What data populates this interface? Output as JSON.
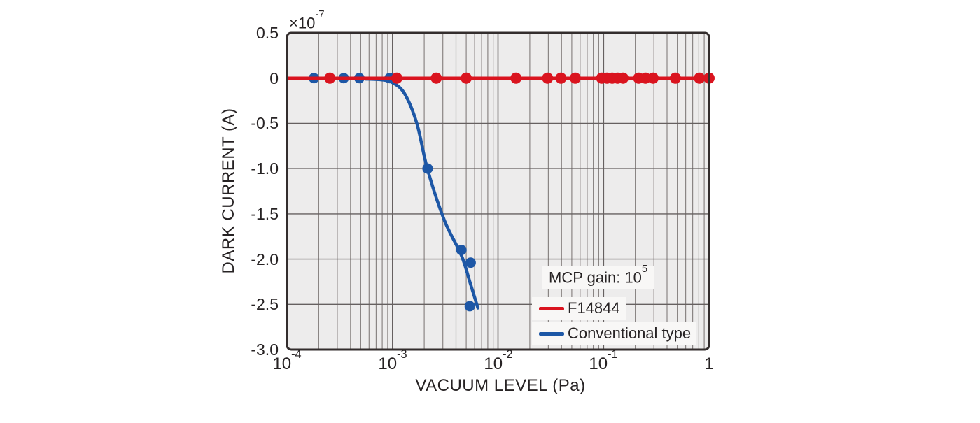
{
  "colors": {
    "page_bg": "#ffffff",
    "plot_bg": "#edecec",
    "grid_minor": "#8a8584",
    "grid_major": "#666060",
    "frame": "#332d2d",
    "red": "#da141f",
    "blue": "#1d57a6",
    "text": "#272324",
    "legend_bg": "#f8f7f6"
  },
  "chart_data": {
    "type": "line",
    "title": "",
    "xlabel": "VACUUM LEVEL (Pa)",
    "ylabel": "DARK CURRENT (A)",
    "y_axis_multiplier_base": "×10",
    "y_axis_multiplier_exp": "-7",
    "x_scale": "log",
    "xlim": [
      0.0001,
      1
    ],
    "ylim": [
      -3.0,
      0.5
    ],
    "ytick_step": 0.5,
    "yticks": [
      "0.5",
      "0",
      "-0.5",
      "-1.0",
      "-1.5",
      "-2.0",
      "-2.5",
      "-3.0"
    ],
    "xticks": [
      {
        "base": "10",
        "exp": "-4"
      },
      {
        "base": "10",
        "exp": "-3"
      },
      {
        "base": "10",
        "exp": "-2"
      },
      {
        "base": "10",
        "exp": "-1"
      },
      {
        "base": "1",
        "exp": ""
      }
    ],
    "grid": {
      "vertical": "log decades with minor lines 2-9",
      "horizontal": "every 0.5"
    },
    "legend": {
      "position": "inside-bottom-right",
      "note_base": "MCP gain: 10",
      "note_exp": "5",
      "entries": [
        "F14844",
        "Conventional type"
      ]
    },
    "series": [
      {
        "name": "F14844",
        "color": "#da141f",
        "marker": "circle",
        "y": 0,
        "x": [
          0.000255,
          0.0011,
          0.0026,
          0.005,
          0.0148,
          0.0295,
          0.0395,
          0.054,
          0.096,
          0.108,
          0.121,
          0.136,
          0.153,
          0.215,
          0.25,
          0.295,
          0.48,
          0.81,
          1.0
        ]
      },
      {
        "name": "Conventional type",
        "color": "#1d57a6",
        "marker": "circle",
        "points": [
          [
            0.00018,
            0
          ],
          [
            0.000345,
            0
          ],
          [
            0.000485,
            0
          ],
          [
            0.00094,
            0
          ],
          [
            0.00215,
            -1.0
          ],
          [
            0.0045,
            -1.9
          ],
          [
            0.0055,
            -2.04
          ],
          [
            0.0054,
            -2.52
          ]
        ],
        "curve": [
          [
            0.00055,
            -0.01
          ],
          [
            0.0008,
            -0.02
          ],
          [
            0.001,
            -0.05
          ],
          [
            0.0013,
            -0.17
          ],
          [
            0.0017,
            -0.5
          ],
          [
            0.00215,
            -1.01
          ],
          [
            0.0031,
            -1.57
          ],
          [
            0.0045,
            -1.96
          ],
          [
            0.0055,
            -2.28
          ],
          [
            0.00645,
            -2.54
          ]
        ]
      }
    ]
  }
}
